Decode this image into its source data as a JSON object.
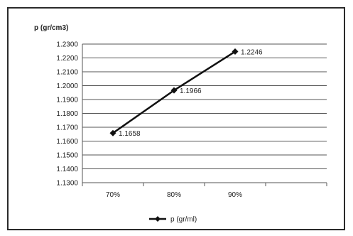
{
  "chart_data": {
    "type": "line",
    "ylabel": "p (gr/cm3)",
    "categories": [
      "70%",
      "80%",
      "90%"
    ],
    "series": [
      {
        "name": "p (gr/ml)",
        "values": [
          1.1658,
          1.1966,
          1.2246
        ]
      }
    ],
    "data_labels": [
      "1.1658",
      "1.1966",
      "1.2246"
    ],
    "ylim": [
      1.13,
      1.23
    ],
    "ytick_values": [
      1.13,
      1.14,
      1.15,
      1.16,
      1.17,
      1.18,
      1.19,
      1.2,
      1.21,
      1.22,
      1.23
    ],
    "ytick_labels": [
      "1.1300",
      "1.1400",
      "1.1500",
      "1.1600",
      "1.1700",
      "1.1800",
      "1.1900",
      "1.2000",
      "1.2100",
      "1.2200",
      "1.2300"
    ],
    "grid": "horizontal",
    "legend_position": "bottom",
    "colors": {
      "line": "#111111",
      "grid": "#555555",
      "border": "#2a2a2a"
    }
  }
}
